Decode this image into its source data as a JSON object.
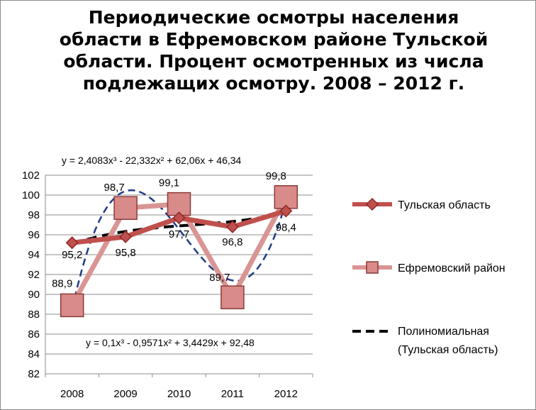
{
  "chart_data": {
    "type": "line",
    "title": "Периодические осмотры населения области в Ефремовском районе Тульской области. Процент осмотренных из числа подлежащих осмотру. 2008 – 2012 г.",
    "categories": [
      "2008",
      "2009",
      "2010",
      "2011",
      "2012"
    ],
    "ylim": [
      82,
      102
    ],
    "yticks": [
      "82",
      "84",
      "86",
      "88",
      "90",
      "92",
      "94",
      "96",
      "98",
      "100",
      "102"
    ],
    "ytick_values": [
      82,
      84,
      86,
      88,
      90,
      92,
      94,
      96,
      98,
      100,
      102
    ],
    "grid": true,
    "legend_position": "right",
    "series": [
      {
        "name": "Тульская область",
        "values": [
          95.2,
          95.8,
          97.7,
          96.8,
          98.4
        ],
        "labels": [
          "95,2",
          "95,8",
          "97,7",
          "96,8",
          "98,4"
        ],
        "color": "#c0504d",
        "marker": "diamond"
      },
      {
        "name": "Ефремовский район",
        "values": [
          88.9,
          98.7,
          99.1,
          89.7,
          99.8
        ],
        "labels": [
          "88,9",
          "98,7",
          "99,1",
          "89,7",
          "99,8"
        ],
        "color": "#d99594",
        "marker": "square"
      }
    ],
    "trendlines": [
      {
        "name": "Полиномиальная (Тульская область)",
        "legend_lines": [
          "Полиномиальная",
          "(Тульская область)"
        ],
        "equation": "y = 0,1x³ - 0,9571x² + 3,4429x + 92,48",
        "coefficients": [
          0.1,
          -0.9571,
          3.4429,
          92.48
        ],
        "color": "#000000",
        "style": "dashed"
      },
      {
        "equation": "y = 2,4083x³ - 22,332x² + 62,06x + 46,34",
        "coefficients": [
          2.4083,
          -22.332,
          62.06,
          46.34
        ],
        "color": "#1f3c88",
        "style": "dashed"
      }
    ]
  }
}
